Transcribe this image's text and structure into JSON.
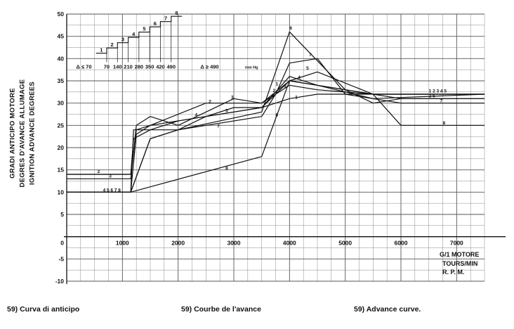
{
  "chart_data": {
    "type": "line",
    "xlim": [
      0,
      7500
    ],
    "ylim": [
      -10,
      50
    ],
    "x_ticks": [
      1000,
      2000,
      3000,
      4000,
      5000,
      6000,
      7000
    ],
    "y_ticks": [
      -10,
      -5,
      5,
      10,
      15,
      20,
      25,
      30,
      35,
      40,
      45,
      50
    ],
    "x_tick_labels": [
      "1000",
      "2000",
      "3000",
      "4000",
      "5000",
      "6000",
      "7000"
    ],
    "y_tick_labels": [
      "-10",
      "-5",
      "5",
      "10",
      "15",
      "20",
      "25",
      "30",
      "35",
      "40",
      "45",
      "50"
    ],
    "origin_label": "0",
    "grid": true,
    "ylabel": [
      "GRADI ANTICIPO MOTORE",
      "DEGRES D'AVANCE ALLUMAGE",
      "IGNITION ADVANCE DEGREES"
    ],
    "xlabel": [
      "G/1 MOTORE",
      "TOURS/MIN",
      "R. P. M."
    ],
    "series": [
      {
        "name": "1",
        "points": [
          [
            0,
            14
          ],
          [
            1150,
            14
          ],
          [
            1200,
            22
          ],
          [
            1500,
            24
          ],
          [
            2000,
            26
          ],
          [
            3000,
            28
          ],
          [
            3500,
            29
          ],
          [
            4000,
            31
          ],
          [
            4500,
            32
          ],
          [
            5500,
            32
          ],
          [
            7500,
            32
          ]
        ]
      },
      {
        "name": "2",
        "points": [
          [
            0,
            14
          ],
          [
            1150,
            14
          ],
          [
            1250,
            24
          ],
          [
            1500,
            25
          ],
          [
            2500,
            30
          ],
          [
            3000,
            30
          ],
          [
            3500,
            30
          ],
          [
            4000,
            35
          ],
          [
            4500,
            34
          ],
          [
            5500,
            32
          ],
          [
            6000,
            31
          ],
          [
            7500,
            31
          ]
        ]
      },
      {
        "name": "3",
        "points": [
          [
            0,
            13
          ],
          [
            1150,
            13
          ],
          [
            1250,
            25
          ],
          [
            1500,
            27
          ],
          [
            2000,
            25
          ],
          [
            3000,
            31
          ],
          [
            3500,
            30
          ],
          [
            4000,
            34
          ],
          [
            4500,
            33
          ],
          [
            5500,
            32
          ],
          [
            7500,
            32
          ]
        ]
      },
      {
        "name": "4",
        "points": [
          [
            0,
            10
          ],
          [
            1150,
            10
          ],
          [
            1200,
            24
          ],
          [
            1500,
            24
          ],
          [
            2000,
            24
          ],
          [
            2500,
            27
          ],
          [
            3000,
            29
          ],
          [
            3500,
            29
          ],
          [
            4000,
            36
          ],
          [
            4500,
            34
          ],
          [
            5500,
            31
          ],
          [
            7500,
            32
          ]
        ]
      },
      {
        "name": "5",
        "points": [
          [
            0,
            10
          ],
          [
            1150,
            10
          ],
          [
            1250,
            23
          ],
          [
            1500,
            25
          ],
          [
            2500,
            27
          ],
          [
            3000,
            28
          ],
          [
            3500,
            29
          ],
          [
            4000,
            35
          ],
          [
            4500,
            37
          ],
          [
            5500,
            32
          ],
          [
            7500,
            32
          ]
        ]
      },
      {
        "name": "6",
        "points": [
          [
            0,
            10
          ],
          [
            1150,
            10
          ],
          [
            1500,
            22
          ],
          [
            2000,
            24
          ],
          [
            3500,
            28
          ],
          [
            4000,
            46
          ],
          [
            5000,
            33
          ],
          [
            5500,
            30
          ],
          [
            6000,
            31
          ],
          [
            7500,
            31
          ]
        ]
      },
      {
        "name": "7",
        "points": [
          [
            0,
            10
          ],
          [
            1150,
            10
          ],
          [
            1500,
            22
          ],
          [
            2000,
            24
          ],
          [
            3500,
            27
          ],
          [
            3750,
            32
          ],
          [
            4000,
            39
          ],
          [
            4500,
            40
          ],
          [
            5000,
            32
          ],
          [
            6000,
            30
          ],
          [
            7500,
            30
          ]
        ]
      },
      {
        "name": "8",
        "points": [
          [
            0,
            10
          ],
          [
            1150,
            10
          ],
          [
            3500,
            18
          ],
          [
            4000,
            35
          ],
          [
            5500,
            32
          ],
          [
            6000,
            25
          ],
          [
            7500,
            25
          ]
        ]
      }
    ],
    "curve_labels": [
      {
        "text": "1",
        "x": 4100,
        "y": 31
      },
      {
        "text": "2",
        "x": 2550,
        "y": 30
      },
      {
        "text": "3",
        "x": 2950,
        "y": 31
      },
      {
        "text": "4",
        "x": 2300,
        "y": 27
      },
      {
        "text": "5",
        "x": 2850,
        "y": 28
      },
      {
        "text": "6",
        "x": 4000,
        "y": 46.5
      },
      {
        "text": "7",
        "x": 4350,
        "y": 40.5
      },
      {
        "text": "8",
        "x": 2850,
        "y": 15
      },
      {
        "text": "2",
        "x": 550,
        "y": 14.3
      },
      {
        "text": "3",
        "x": 760,
        "y": 13.3
      },
      {
        "text": "4 5 6 7 8",
        "x": 650,
        "y": 10.1
      },
      {
        "text": "1",
        "x": 3750,
        "y": 34
      },
      {
        "text": "2",
        "x": 3700,
        "y": 32.5
      },
      {
        "text": "3",
        "x": 3900,
        "y": 33.5
      },
      {
        "text": "4",
        "x": 4150,
        "y": 35.5
      },
      {
        "text": "5",
        "x": 4300,
        "y": 37.5
      },
      {
        "text": "8",
        "x": 3750,
        "y": 27
      },
      {
        "text": "7",
        "x": 2700,
        "y": 24.5
      },
      {
        "text": "1 2 3 4 5",
        "x": 6500,
        "y": 32.4
      },
      {
        "text": "2 6",
        "x": 6500,
        "y": 31.3
      },
      {
        "text": "7",
        "x": 6700,
        "y": 30.2
      },
      {
        "text": "8",
        "x": 6750,
        "y": 25.2
      }
    ],
    "inset_legend": {
      "steps": [
        {
          "label": "1",
          "x_label": "70"
        },
        {
          "label": "2",
          "x_label": "140"
        },
        {
          "label": "3",
          "x_label": "210"
        },
        {
          "label": "4",
          "x_label": "280"
        },
        {
          "label": "5",
          "x_label": "350"
        },
        {
          "label": "6",
          "x_label": "420"
        },
        {
          "label": "7",
          "x_label": "490"
        },
        {
          "label": "8",
          "x_label": ""
        }
      ],
      "left_label": "Δ ≤ 70",
      "right_label": "Δ ≥ 490",
      "right_unit": "mm Hg"
    }
  },
  "captions": [
    "59) Curva di anticipo",
    "59) Courbe de l'avance",
    "59) Advance curve."
  ]
}
